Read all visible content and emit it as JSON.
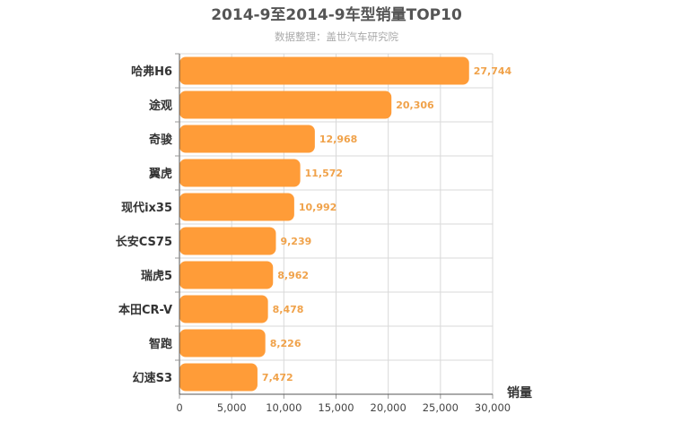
{
  "chart_data": {
    "type": "bar",
    "orientation": "horizontal",
    "title": "2014-9至2014-9车型销量TOP10",
    "subtitle": "数据整理：盖世汽车研究院",
    "xlabel": "销量",
    "ylabel": "",
    "categories": [
      "哈弗H6",
      "途观",
      "奇骏",
      "翼虎",
      "现代ix35",
      "长安CS75",
      "瑞虎5",
      "本田CR-V",
      "智跑",
      "幻速S3"
    ],
    "values": [
      27744,
      20306,
      12968,
      11572,
      10992,
      9239,
      8962,
      8478,
      8226,
      7472
    ],
    "value_labels": [
      "27,744",
      "20,306",
      "12,968",
      "11,572",
      "10,992",
      "9,239",
      "8,962",
      "8,478",
      "8,226",
      "7,472"
    ],
    "xlim": [
      0,
      30000
    ],
    "xticks": [
      0,
      5000,
      10000,
      15000,
      20000,
      25000,
      30000
    ],
    "xtick_labels": [
      "0",
      "5,000",
      "10,000",
      "15,000",
      "20,000",
      "25,000",
      "30,000"
    ],
    "grid": true,
    "bar_color": "#ff9c38",
    "label_color": "#f0a24a"
  }
}
